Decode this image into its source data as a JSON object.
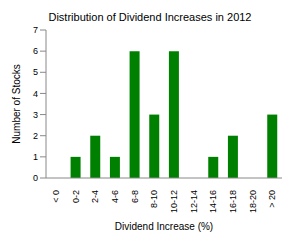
{
  "chart_data": {
    "type": "bar",
    "title": "Distribution of Dividend Increases in 2012",
    "x_label": "Dividend Increase (%)",
    "y_label": "Number of Stocks",
    "categories": [
      "< 0",
      "0-2",
      "2-4",
      "4-6",
      "6-8",
      "8-10",
      "10-12",
      "12-14",
      "14-16",
      "16-18",
      "18-20",
      "> 20"
    ],
    "values": [
      0,
      1,
      2,
      1,
      6,
      3,
      6,
      0,
      1,
      2,
      0,
      3
    ],
    "color": "#008000",
    "ylim": [
      0,
      7
    ],
    "yticks": [
      0,
      1,
      2,
      3,
      4,
      5,
      6,
      7
    ],
    "grid": false
  }
}
